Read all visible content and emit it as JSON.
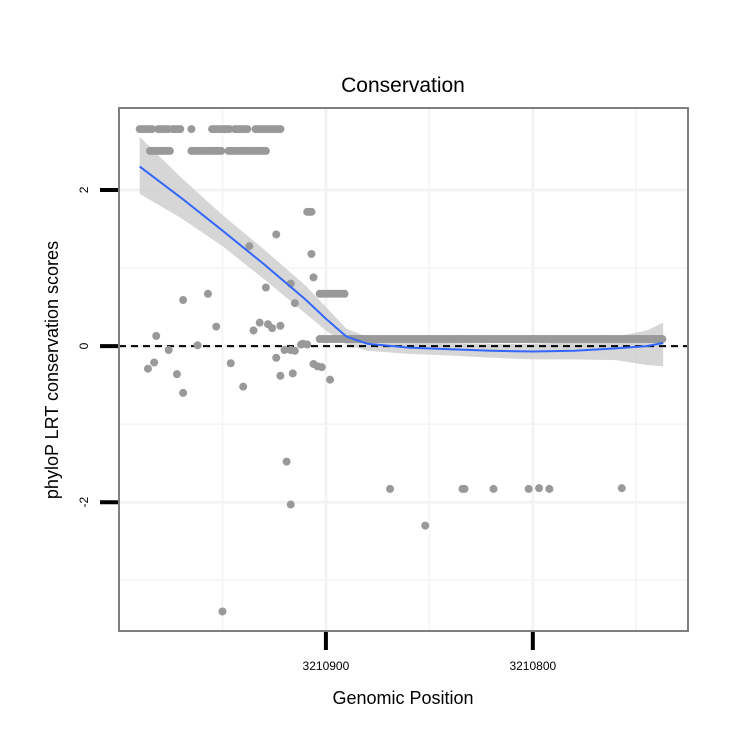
{
  "chart_data": {
    "type": "scatter",
    "title": "Conservation",
    "xlabel": "Genomic Position",
    "ylabel": "phyloP LRT conservation scores",
    "x_reversed": true,
    "xlim": [
      3211000,
      3210725
    ],
    "ylim": [
      -3.65,
      3.05
    ],
    "x_ticks": [
      {
        "value": 3210900,
        "label": "3210900"
      },
      {
        "value": 3210800,
        "label": "3210800"
      }
    ],
    "y_ticks": [
      {
        "value": 2,
        "label": "2"
      },
      {
        "value": 0,
        "label": "0"
      },
      {
        "value": -2,
        "label": "-2"
      }
    ],
    "x_minor_grid": [
      3210950,
      3210850,
      3210750
    ],
    "y_minor_grid": [
      1,
      -1,
      -3
    ],
    "reference_line": {
      "y": 0,
      "style": "dashed",
      "color": "#000000"
    },
    "points_color": "#999999",
    "smooth_color": "#3366ff",
    "ribbon_color": "#cccccc",
    "points_top_rows": [
      {
        "y": 2.78,
        "x_ranges": [
          [
            3210990,
            3210984
          ],
          [
            3210981,
            3210976
          ],
          [
            3210974,
            3210970
          ],
          [
            3210965,
            3210964
          ],
          [
            3210955,
            3210946
          ],
          [
            3210944,
            3210938
          ],
          [
            3210934,
            3210921
          ]
        ]
      },
      {
        "y": 2.5,
        "x_ranges": [
          [
            3210985,
            3210975
          ],
          [
            3210965,
            3210950
          ],
          [
            3210947,
            3210928
          ]
        ]
      }
    ],
    "points_band": {
      "y": 0.09,
      "x_from": 3210903,
      "x_to": 3210737,
      "step": 1.2
    },
    "points_cluster_067": {
      "y": 0.67,
      "x_from": 3210903,
      "x_to": 3210891,
      "step": 1.2
    },
    "points": [
      {
        "x": 3210909,
        "y": 1.72
      },
      {
        "x": 3210908,
        "y": 1.72
      },
      {
        "x": 3210907,
        "y": 1.72
      },
      {
        "x": 3210924,
        "y": 1.43
      },
      {
        "x": 3210937,
        "y": 1.28
      },
      {
        "x": 3210907,
        "y": 1.18
      },
      {
        "x": 3210906,
        "y": 0.88
      },
      {
        "x": 3210917,
        "y": 0.8
      },
      {
        "x": 3210929,
        "y": 0.75
      },
      {
        "x": 3210957,
        "y": 0.67
      },
      {
        "x": 3210969,
        "y": 0.59
      },
      {
        "x": 3210915,
        "y": 0.55
      },
      {
        "x": 3210932,
        "y": 0.3
      },
      {
        "x": 3210928,
        "y": 0.28
      },
      {
        "x": 3210922,
        "y": 0.26
      },
      {
        "x": 3210953,
        "y": 0.25
      },
      {
        "x": 3210926,
        "y": 0.23
      },
      {
        "x": 3210935,
        "y": 0.2
      },
      {
        "x": 3210982,
        "y": 0.13
      },
      {
        "x": 3210911,
        "y": 0.03
      },
      {
        "x": 3210912,
        "y": 0.02
      },
      {
        "x": 3210909,
        "y": 0.02
      },
      {
        "x": 3210962,
        "y": 0.01
      },
      {
        "x": 3210976,
        "y": -0.05
      },
      {
        "x": 3210920,
        "y": -0.05
      },
      {
        "x": 3210915,
        "y": -0.06
      },
      {
        "x": 3210917,
        "y": -0.05
      },
      {
        "x": 3210924,
        "y": -0.15
      },
      {
        "x": 3210983,
        "y": -0.21
      },
      {
        "x": 3210946,
        "y": -0.22
      },
      {
        "x": 3210906,
        "y": -0.23
      },
      {
        "x": 3210904,
        "y": -0.26
      },
      {
        "x": 3210902,
        "y": -0.27
      },
      {
        "x": 3210986,
        "y": -0.29
      },
      {
        "x": 3210916,
        "y": -0.35
      },
      {
        "x": 3210922,
        "y": -0.38
      },
      {
        "x": 3210972,
        "y": -0.36
      },
      {
        "x": 3210898,
        "y": -0.43
      },
      {
        "x": 3210940,
        "y": -0.52
      },
      {
        "x": 3210969,
        "y": -0.6
      },
      {
        "x": 3210919,
        "y": -1.48
      },
      {
        "x": 3210869,
        "y": -1.83
      },
      {
        "x": 3210834,
        "y": -1.83
      },
      {
        "x": 3210833,
        "y": -1.83
      },
      {
        "x": 3210819,
        "y": -1.83
      },
      {
        "x": 3210802,
        "y": -1.83
      },
      {
        "x": 3210797,
        "y": -1.82
      },
      {
        "x": 3210792,
        "y": -1.83
      },
      {
        "x": 3210757,
        "y": -1.82
      },
      {
        "x": 3210917,
        "y": -2.03
      },
      {
        "x": 3210852,
        "y": -2.3
      },
      {
        "x": 3210950,
        "y": -3.4
      }
    ],
    "smooth": [
      {
        "x": 3210990,
        "y": 2.3,
        "ymin": 1.95,
        "ymax": 2.68
      },
      {
        "x": 3210970,
        "y": 1.9,
        "ymin": 1.64,
        "ymax": 2.16
      },
      {
        "x": 3210950,
        "y": 1.48,
        "ymin": 1.28,
        "ymax": 1.68
      },
      {
        "x": 3210930,
        "y": 1.05,
        "ymin": 0.86,
        "ymax": 1.24
      },
      {
        "x": 3210910,
        "y": 0.6,
        "ymin": 0.42,
        "ymax": 0.78
      },
      {
        "x": 3210900,
        "y": 0.35,
        "ymin": 0.2,
        "ymax": 0.5
      },
      {
        "x": 3210890,
        "y": 0.12,
        "ymin": 0.02,
        "ymax": 0.22
      },
      {
        "x": 3210880,
        "y": 0.03,
        "ymin": -0.06,
        "ymax": 0.12
      },
      {
        "x": 3210860,
        "y": -0.02,
        "ymin": -0.1,
        "ymax": 0.06
      },
      {
        "x": 3210840,
        "y": -0.04,
        "ymin": -0.12,
        "ymax": 0.04
      },
      {
        "x": 3210820,
        "y": -0.06,
        "ymin": -0.15,
        "ymax": 0.03
      },
      {
        "x": 3210800,
        "y": -0.07,
        "ymin": -0.17,
        "ymax": 0.03
      },
      {
        "x": 3210780,
        "y": -0.06,
        "ymin": -0.17,
        "ymax": 0.05
      },
      {
        "x": 3210760,
        "y": -0.03,
        "ymin": -0.18,
        "ymax": 0.12
      },
      {
        "x": 3210745,
        "y": 0.0,
        "ymin": -0.24,
        "ymax": 0.2
      },
      {
        "x": 3210737,
        "y": 0.04,
        "ymin": -0.26,
        "ymax": 0.3
      }
    ]
  }
}
